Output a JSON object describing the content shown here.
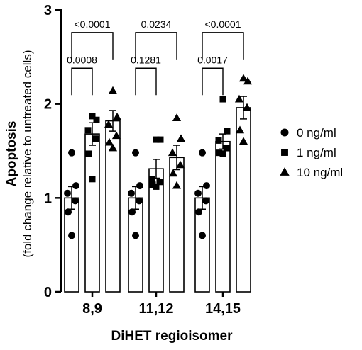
{
  "chart_data": {
    "type": "bar",
    "xlabel": "DiHET regioisomer",
    "ylabel": "Apoptosis",
    "ylabel_sub": "(fold change relative to untreated cells)",
    "ylim": [
      0,
      3
    ],
    "yticks": [
      "0",
      "1",
      "2",
      "3"
    ],
    "categories": [
      "8,9",
      "11,12",
      "14,15"
    ],
    "series": [
      {
        "name": "0 ng/ml",
        "marker": "circle",
        "values": [
          1.0,
          1.0,
          1.0
        ],
        "errors": [
          0.12,
          0.12,
          0.12
        ],
        "points": [
          [
            1.48,
            1.13,
            1.05,
            0.97,
            0.85,
            0.6
          ],
          [
            1.48,
            1.13,
            1.05,
            0.97,
            0.85,
            0.6
          ],
          [
            1.48,
            1.13,
            1.05,
            0.97,
            0.85,
            0.6
          ]
        ]
      },
      {
        "name": "1 ng/ml",
        "marker": "square",
        "values": [
          1.68,
          1.31,
          1.6
        ],
        "errors": [
          0.12,
          0.1,
          0.08
        ],
        "points": [
          [
            1.87,
            1.83,
            1.72,
            1.63,
            1.47,
            1.2
          ],
          [
            1.62,
            1.62,
            1.2,
            1.17,
            1.14,
            1.12
          ],
          [
            2.05,
            1.71,
            1.61,
            1.53,
            1.48,
            1.47
          ]
        ]
      },
      {
        "name": "10 ng/ml",
        "marker": "triangle",
        "values": [
          1.82,
          1.43,
          1.96
        ],
        "errors": [
          0.11,
          0.13,
          0.12
        ],
        "points": [
          [
            2.14,
            1.86,
            1.78,
            1.66,
            1.59,
            1.53
          ],
          [
            1.85,
            1.63,
            1.48,
            1.35,
            1.26,
            1.13
          ],
          [
            2.27,
            2.24,
            2.05,
            1.96,
            1.72,
            1.6
          ]
        ]
      }
    ],
    "comparisons": [
      {
        "group": 0,
        "from": 0,
        "to": 1,
        "label": "0.0008",
        "y": 2.38
      },
      {
        "group": 0,
        "from": 0,
        "to": 2,
        "label": "<0.0001",
        "y": 2.76
      },
      {
        "group": 1,
        "from": 0,
        "to": 1,
        "label": "0.1281",
        "y": 2.38
      },
      {
        "group": 1,
        "from": 0,
        "to": 2,
        "label": "0.0234",
        "y": 2.76
      },
      {
        "group": 2,
        "from": 0,
        "to": 1,
        "label": "0.0017",
        "y": 2.38
      },
      {
        "group": 2,
        "from": 0,
        "to": 2,
        "label": "<0.0001",
        "y": 2.76
      }
    ],
    "legend_position": "right",
    "grid": false
  }
}
